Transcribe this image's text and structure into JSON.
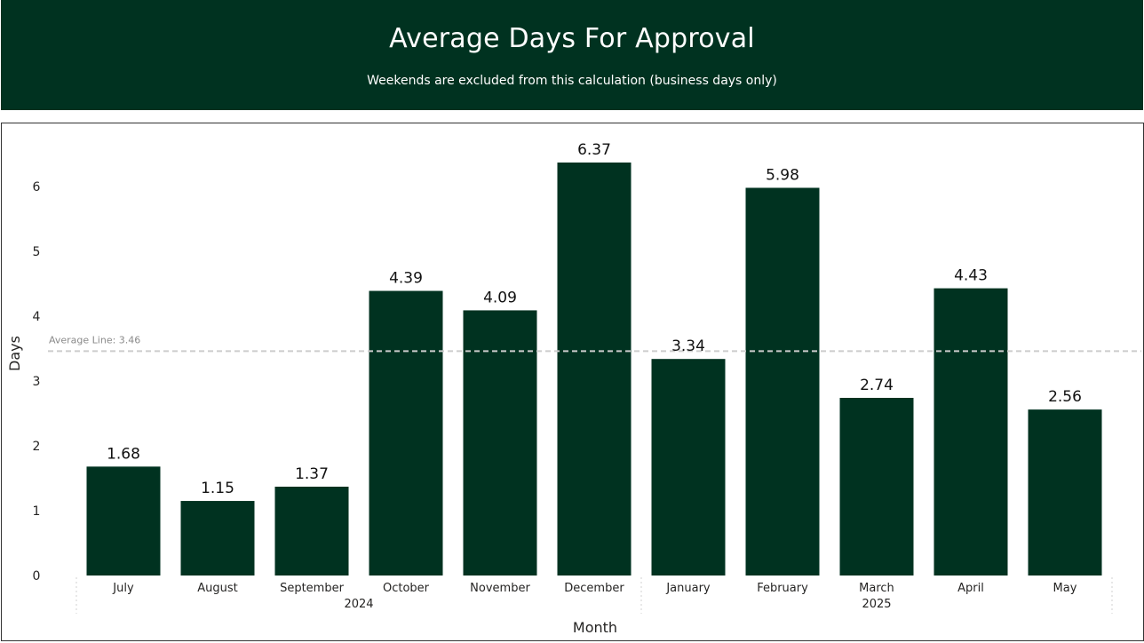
{
  "header": {
    "title": "Average Days For Approval",
    "subtitle": "Weekends are excluded from this calculation (business days only)"
  },
  "colors": {
    "header_bg": "#003220",
    "bar": "#003220",
    "average_line": "#cccccc"
  },
  "chart_data": {
    "type": "bar",
    "categories": [
      "July",
      "August",
      "September",
      "October",
      "November",
      "December",
      "January",
      "February",
      "March",
      "April",
      "May"
    ],
    "year_groups": [
      {
        "label": "2024",
        "count": 6
      },
      {
        "label": "2025",
        "count": 5
      }
    ],
    "values": [
      1.68,
      1.15,
      1.37,
      4.39,
      4.09,
      6.37,
      3.34,
      5.98,
      2.74,
      4.43,
      2.56
    ],
    "data_labels": [
      "1.68",
      "1.15",
      "1.37",
      "4.39",
      "4.09",
      "6.37",
      "3.34",
      "5.98",
      "2.74",
      "4.43",
      "2.56"
    ],
    "xlabel": "Month",
    "ylabel": "Days",
    "yticks": [
      0,
      1,
      2,
      3,
      4,
      5,
      6
    ],
    "ylim": [
      0,
      6.37
    ],
    "average_line": {
      "value": 3.46,
      "label": "Average Line: 3.46"
    },
    "grid": false,
    "legend": "none"
  }
}
